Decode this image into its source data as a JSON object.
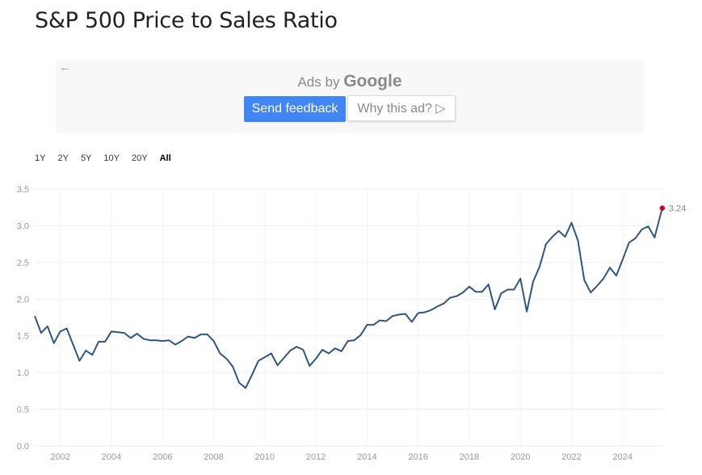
{
  "title": "S&P 500 Price to Sales Ratio",
  "ad": {
    "back_icon": "arrow-left-icon",
    "ads_by": "Ads by",
    "google": "Google",
    "send_feedback": "Send feedback",
    "why_this_ad": "Why this ad? ▷"
  },
  "ranges": [
    {
      "label": "1Y",
      "active": false
    },
    {
      "label": "2Y",
      "active": false
    },
    {
      "label": "5Y",
      "active": false
    },
    {
      "label": "10Y",
      "active": false
    },
    {
      "label": "20Y",
      "active": false
    },
    {
      "label": "All",
      "active": true
    }
  ],
  "chart_data": {
    "type": "line",
    "title": "",
    "xlabel": "",
    "ylabel": "",
    "xlim": [
      2001.0,
      2025.65
    ],
    "ylim": [
      0,
      3.5
    ],
    "yticks": [
      "0.0",
      "0.5",
      "1.0",
      "1.5",
      "2.0",
      "2.5",
      "3.0",
      "3.5"
    ],
    "xticks": [
      "2002",
      "2004",
      "2006",
      "2008",
      "2010",
      "2012",
      "2014",
      "2016",
      "2018",
      "2020",
      "2022",
      "2024"
    ],
    "grid": true,
    "line_color": "#2f5583",
    "marker_color": "#d4001c",
    "last_label": "3.24",
    "series": [
      {
        "x": [
          2001.0,
          2001.25,
          2001.5,
          2001.75,
          2002.0,
          2002.25,
          2002.5,
          2002.75,
          2003.0,
          2003.25,
          2003.5,
          2003.75,
          2004.0,
          2004.25,
          2004.5,
          2004.75,
          2005.0,
          2005.25,
          2005.5,
          2005.75,
          2006.0,
          2006.25,
          2006.5,
          2006.75,
          2007.0,
          2007.25,
          2007.5,
          2007.75,
          2008.0,
          2008.25,
          2008.5,
          2008.75,
          2009.0,
          2009.25,
          2009.5,
          2009.75,
          2010.0,
          2010.25,
          2010.5,
          2010.75,
          2011.0,
          2011.25,
          2011.5,
          2011.75,
          2012.0,
          2012.25,
          2012.5,
          2012.75,
          2013.0,
          2013.25,
          2013.5,
          2013.75,
          2014.0,
          2014.25,
          2014.5,
          2014.75,
          2015.0,
          2015.25,
          2015.5,
          2015.75,
          2016.0,
          2016.25,
          2016.5,
          2016.75,
          2017.0,
          2017.25,
          2017.5,
          2017.75,
          2018.0,
          2018.25,
          2018.5,
          2018.75,
          2019.0,
          2019.25,
          2019.5,
          2019.75,
          2020.0,
          2020.25,
          2020.5,
          2020.75,
          2021.0,
          2021.25,
          2021.5,
          2021.75,
          2022.0,
          2022.25,
          2022.5,
          2022.75,
          2023.0,
          2023.25,
          2023.5,
          2023.75,
          2024.0,
          2024.25,
          2024.5,
          2024.75,
          2025.0,
          2025.25,
          2025.55
        ],
        "y": [
          1.77,
          1.54,
          1.63,
          1.4,
          1.56,
          1.6,
          1.38,
          1.16,
          1.3,
          1.24,
          1.42,
          1.42,
          1.56,
          1.55,
          1.54,
          1.47,
          1.53,
          1.46,
          1.44,
          1.44,
          1.43,
          1.44,
          1.38,
          1.43,
          1.49,
          1.47,
          1.52,
          1.52,
          1.43,
          1.26,
          1.19,
          1.08,
          0.86,
          0.79,
          0.97,
          1.16,
          1.21,
          1.26,
          1.1,
          1.2,
          1.3,
          1.35,
          1.31,
          1.09,
          1.19,
          1.31,
          1.26,
          1.33,
          1.29,
          1.43,
          1.44,
          1.51,
          1.65,
          1.65,
          1.71,
          1.7,
          1.77,
          1.79,
          1.8,
          1.69,
          1.81,
          1.82,
          1.85,
          1.9,
          1.94,
          2.02,
          2.04,
          2.09,
          2.17,
          2.1,
          2.1,
          2.2,
          1.86,
          2.08,
          2.13,
          2.13,
          2.28,
          1.83,
          2.24,
          2.44,
          2.75,
          2.85,
          2.93,
          2.85,
          3.04,
          2.8,
          2.26,
          2.09,
          2.18,
          2.28,
          2.43,
          2.32,
          2.54,
          2.77,
          2.83,
          2.95,
          2.99,
          2.84,
          3.24
        ]
      }
    ]
  }
}
